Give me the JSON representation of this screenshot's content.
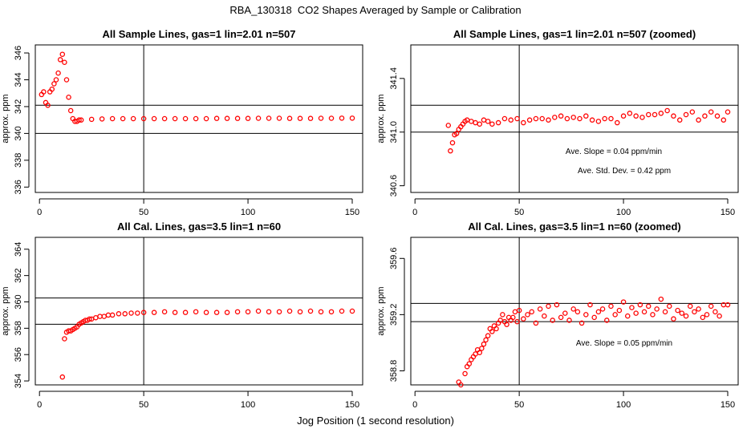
{
  "title": "RBA_130318  CO2 Shapes Averaged by Sample or Calibration",
  "xlabel": "Jog Position (1 second resolution)",
  "colors": {
    "points": "#ff0000",
    "axes": "#000000",
    "background": "#ffffff"
  },
  "chart_data": [
    {
      "type": "scatter",
      "title": "All Sample Lines, gas=1 lin=2.01 n=507",
      "ylabel": "approx. ppm",
      "xlim": [
        -2,
        155
      ],
      "ylim": [
        335.6,
        346.6
      ],
      "xticks": [
        0,
        50,
        100,
        150
      ],
      "yticks": [
        336,
        338,
        340,
        342,
        344,
        346
      ],
      "hlines": [
        340.0,
        342.1
      ],
      "vlines": [
        50
      ],
      "annotations": [],
      "series": [
        {
          "x": [
            1,
            2,
            3,
            4,
            5,
            6,
            7,
            8,
            9,
            10,
            11,
            12,
            13,
            14,
            15,
            16,
            17,
            18,
            19,
            20,
            25,
            30,
            35,
            40,
            45,
            50,
            55,
            60,
            65,
            70,
            75,
            80,
            85,
            90,
            95,
            100,
            105,
            110,
            115,
            120,
            125,
            130,
            135,
            140,
            145,
            150
          ],
          "y": [
            342.9,
            343.1,
            342.3,
            342.1,
            343.1,
            343.3,
            343.7,
            344.0,
            344.5,
            345.5,
            345.9,
            345.3,
            344.0,
            342.7,
            341.7,
            341.1,
            340.9,
            340.9,
            341.0,
            341.0,
            341.05,
            341.08,
            341.1,
            341.1,
            341.1,
            341.1,
            341.1,
            341.1,
            341.1,
            341.1,
            341.1,
            341.1,
            341.12,
            341.12,
            341.12,
            341.12,
            341.13,
            341.13,
            341.13,
            341.12,
            341.12,
            341.12,
            341.13,
            341.13,
            341.14,
            341.14
          ]
        }
      ]
    },
    {
      "type": "scatter",
      "title": "All Sample Lines, gas=1 lin=2.01 n=507 (zoomed)",
      "ylabel": "approx. ppm",
      "xlim": [
        -2,
        155
      ],
      "ylim": [
        340.55,
        341.65
      ],
      "xticks": [
        0,
        50,
        100,
        150
      ],
      "yticks": [
        340.6,
        341.0,
        341.4
      ],
      "hlines": [
        341.0,
        341.2
      ],
      "vlines": [
        50
      ],
      "annotations": [
        "Ave. Slope =  0.04  ppm/min",
        "Ave. Std. Dev. =  0.42  ppm"
      ],
      "series": [
        {
          "x": [
            16,
            17,
            18,
            19,
            20,
            21,
            22,
            23,
            24,
            25,
            27,
            29,
            31,
            33,
            35,
            37,
            40,
            43,
            46,
            49,
            52,
            55,
            58,
            61,
            64,
            67,
            70,
            73,
            76,
            79,
            82,
            85,
            88,
            91,
            94,
            97,
            100,
            103,
            106,
            109,
            112,
            115,
            118,
            121,
            124,
            127,
            130,
            133,
            136,
            139,
            142,
            145,
            148,
            150
          ],
          "y": [
            341.05,
            340.86,
            340.92,
            340.98,
            340.99,
            341.02,
            341.04,
            341.06,
            341.08,
            341.09,
            341.08,
            341.07,
            341.06,
            341.09,
            341.08,
            341.06,
            341.07,
            341.1,
            341.09,
            341.1,
            341.07,
            341.09,
            341.1,
            341.1,
            341.09,
            341.11,
            341.12,
            341.1,
            341.11,
            341.1,
            341.12,
            341.09,
            341.08,
            341.1,
            341.1,
            341.07,
            341.12,
            341.14,
            341.12,
            341.11,
            341.13,
            341.13,
            341.14,
            341.16,
            341.12,
            341.09,
            341.13,
            341.15,
            341.09,
            341.12,
            341.15,
            341.12,
            341.09,
            341.15
          ]
        }
      ]
    },
    {
      "type": "scatter",
      "title": "All Cal. Lines, gas=3.5 lin=1 n=60",
      "ylabel": "approx. ppm",
      "xlim": [
        -2,
        155
      ],
      "ylim": [
        353.7,
        364.9
      ],
      "xticks": [
        0,
        50,
        100,
        150
      ],
      "yticks": [
        354,
        356,
        358,
        360,
        362,
        364
      ],
      "hlines": [
        358.3,
        360.3
      ],
      "vlines": [
        50
      ],
      "annotations": [],
      "series": [
        {
          "x": [
            11,
            12,
            13,
            14,
            15,
            16,
            17,
            18,
            19,
            20,
            21,
            22,
            23,
            24,
            25,
            27,
            29,
            31,
            33,
            35,
            38,
            41,
            44,
            47,
            50,
            55,
            60,
            65,
            70,
            75,
            80,
            85,
            90,
            95,
            100,
            105,
            110,
            115,
            120,
            125,
            130,
            135,
            140,
            145,
            150
          ],
          "y": [
            354.3,
            357.2,
            357.7,
            357.8,
            357.8,
            357.9,
            358.0,
            358.1,
            358.3,
            358.4,
            358.5,
            358.6,
            358.6,
            358.7,
            358.7,
            358.8,
            358.9,
            358.9,
            359.0,
            359.0,
            359.1,
            359.1,
            359.15,
            359.15,
            359.2,
            359.2,
            359.25,
            359.2,
            359.2,
            359.25,
            359.2,
            359.2,
            359.2,
            359.25,
            359.25,
            359.3,
            359.25,
            359.25,
            359.3,
            359.25,
            359.3,
            359.25,
            359.25,
            359.3,
            359.3
          ]
        }
      ]
    },
    {
      "type": "scatter",
      "title": "All Cal. Lines, gas=3.5 lin=1 n=60 (zoomed)",
      "ylabel": "approx. ppm",
      "xlim": [
        -2,
        155
      ],
      "ylim": [
        358.7,
        359.75
      ],
      "xticks": [
        0,
        50,
        100,
        150
      ],
      "yticks": [
        358.8,
        359.2,
        359.6
      ],
      "hlines": [
        359.15,
        359.28
      ],
      "vlines": [
        50
      ],
      "annotations": [
        "Ave. Slope =  0.05  ppm/min"
      ],
      "series": [
        {
          "x": [
            21,
            22,
            24,
            25,
            26,
            27,
            28,
            29,
            30,
            31,
            32,
            33,
            34,
            35,
            36,
            37,
            38,
            39,
            40,
            41,
            42,
            43,
            44,
            45,
            46,
            47,
            48,
            49,
            50,
            52,
            54,
            56,
            58,
            60,
            62,
            64,
            66,
            68,
            70,
            72,
            74,
            76,
            78,
            80,
            82,
            84,
            86,
            88,
            90,
            92,
            94,
            96,
            98,
            100,
            102,
            104,
            106,
            108,
            110,
            112,
            114,
            116,
            118,
            120,
            122,
            124,
            126,
            128,
            130,
            132,
            134,
            136,
            138,
            140,
            142,
            144,
            146,
            148,
            150
          ],
          "y": [
            358.72,
            358.7,
            358.78,
            358.83,
            358.85,
            358.88,
            358.9,
            358.92,
            358.95,
            358.93,
            358.96,
            358.99,
            359.02,
            359.05,
            359.1,
            359.08,
            359.12,
            359.1,
            359.14,
            359.16,
            359.2,
            359.15,
            359.13,
            359.18,
            359.16,
            359.18,
            359.22,
            359.15,
            359.23,
            359.17,
            359.2,
            359.22,
            359.14,
            359.24,
            359.19,
            359.26,
            359.16,
            359.27,
            359.18,
            359.21,
            359.16,
            359.24,
            359.22,
            359.14,
            359.2,
            359.27,
            359.18,
            359.22,
            359.24,
            359.16,
            359.26,
            359.2,
            359.23,
            359.29,
            359.19,
            359.25,
            359.21,
            359.27,
            359.22,
            359.26,
            359.2,
            359.24,
            359.31,
            359.22,
            359.26,
            359.17,
            359.23,
            359.21,
            359.19,
            359.26,
            359.22,
            359.24,
            359.18,
            359.2,
            359.26,
            359.22,
            359.19,
            359.27,
            359.27
          ]
        }
      ]
    }
  ]
}
